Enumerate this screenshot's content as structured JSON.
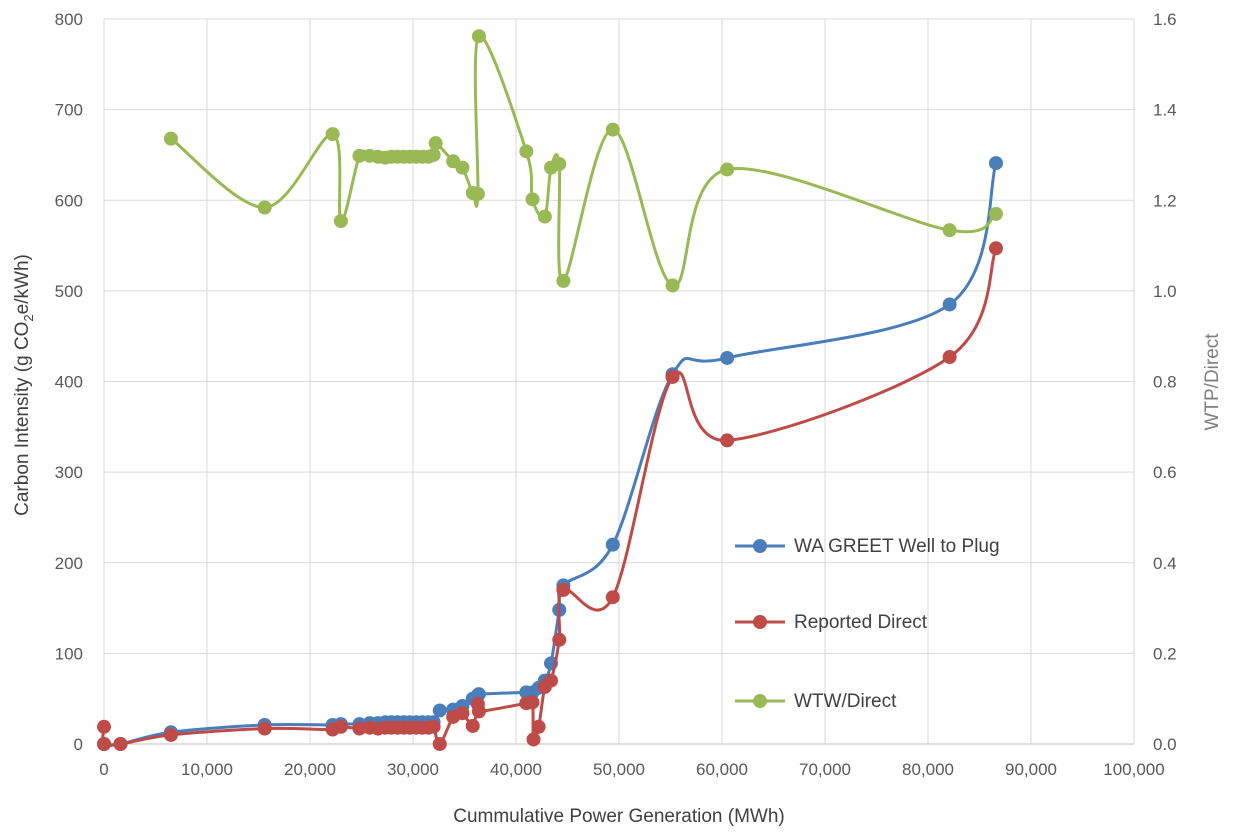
{
  "chart_data": {
    "type": "line",
    "title": "",
    "xlabel": "Cummulative Power Generation (MWh)",
    "ylabel_parts": [
      "Carbon Intensity (g CO",
      "2",
      "e/kWh)"
    ],
    "y2label": "WTP/Direct",
    "xlim": [
      0,
      100000
    ],
    "ylim": [
      0,
      800
    ],
    "y2lim": [
      0,
      1.6
    ],
    "x_ticks": [
      "0",
      "10,000",
      "20,000",
      "30,000",
      "40,000",
      "50,000",
      "60,000",
      "70,000",
      "80,000",
      "90,000",
      "100,000"
    ],
    "y_ticks": [
      "0",
      "100",
      "200",
      "300",
      "400",
      "500",
      "600",
      "700",
      "800"
    ],
    "y2_ticks": [
      "0.0",
      "0.2",
      "0.4",
      "0.6",
      "0.8",
      "1.0",
      "1.2",
      "1.4",
      "1.6"
    ],
    "grid": true,
    "legend_position": "right-center",
    "colors": {
      "grid": "#d9d9d9",
      "axis_text": "#595959"
    },
    "series": [
      {
        "name": "WA GREET Well to Plug",
        "color": "#4a7ebb",
        "axis": "left",
        "x": [
          0,
          1600,
          6500,
          15600,
          22200,
          23000,
          24800,
          25800,
          26600,
          27300,
          27900,
          28500,
          29100,
          29700,
          30300,
          30900,
          31500,
          32000,
          32600,
          33900,
          34800,
          35800,
          36300,
          36400,
          41000,
          41600,
          42200,
          42800,
          43400,
          44200,
          44600,
          49400,
          55200,
          60500,
          82100,
          86600
        ],
        "y": [
          0,
          0,
          13,
          21,
          21,
          22,
          22,
          23,
          23,
          24,
          24,
          24,
          24,
          24,
          24,
          24,
          24,
          24,
          37,
          38,
          42,
          50,
          54,
          55,
          57,
          57,
          62,
          70,
          89,
          148,
          175,
          220,
          408,
          426,
          485,
          641
        ]
      },
      {
        "name": "Reported Direct",
        "color": "#be4b48",
        "axis": "left",
        "x": [
          0,
          0,
          1600,
          6500,
          15600,
          22200,
          23000,
          24800,
          25800,
          26600,
          27300,
          27900,
          28500,
          29100,
          29700,
          30300,
          30900,
          31500,
          32000,
          32600,
          33900,
          34800,
          35800,
          36300,
          36400,
          41000,
          41600,
          41700,
          42200,
          42800,
          43400,
          44200,
          44600,
          49400,
          55200,
          60500,
          82100,
          86600
        ],
        "y": [
          19,
          0,
          0,
          10,
          17,
          16,
          19,
          17,
          18,
          17,
          18,
          18,
          18,
          18,
          18,
          18,
          18,
          18,
          19,
          0,
          30,
          34,
          20,
          44,
          36,
          45,
          46,
          5,
          19,
          63,
          70,
          115,
          170,
          162,
          405,
          335,
          427,
          547
        ]
      },
      {
        "name": "WTW/Direct",
        "color": "#98b954",
        "axis": "right",
        "x": [
          6500,
          15600,
          22200,
          23000,
          24800,
          25800,
          26600,
          27300,
          27900,
          28500,
          29100,
          29700,
          30300,
          30900,
          31500,
          32000,
          32200,
          33900,
          34800,
          35800,
          36300,
          36400,
          41000,
          41600,
          42800,
          43400,
          44200,
          44600,
          49400,
          55200,
          60500,
          82100,
          86600
        ],
        "y": [
          1.336,
          1.184,
          1.346,
          1.154,
          1.298,
          1.298,
          1.296,
          1.294,
          1.296,
          1.296,
          1.296,
          1.296,
          1.296,
          1.296,
          1.296,
          1.3,
          1.326,
          1.286,
          1.272,
          1.216,
          1.214,
          1.562,
          1.308,
          1.202,
          1.164,
          1.272,
          1.28,
          1.022,
          1.356,
          1.012,
          1.268,
          1.134,
          1.17
        ]
      }
    ]
  }
}
